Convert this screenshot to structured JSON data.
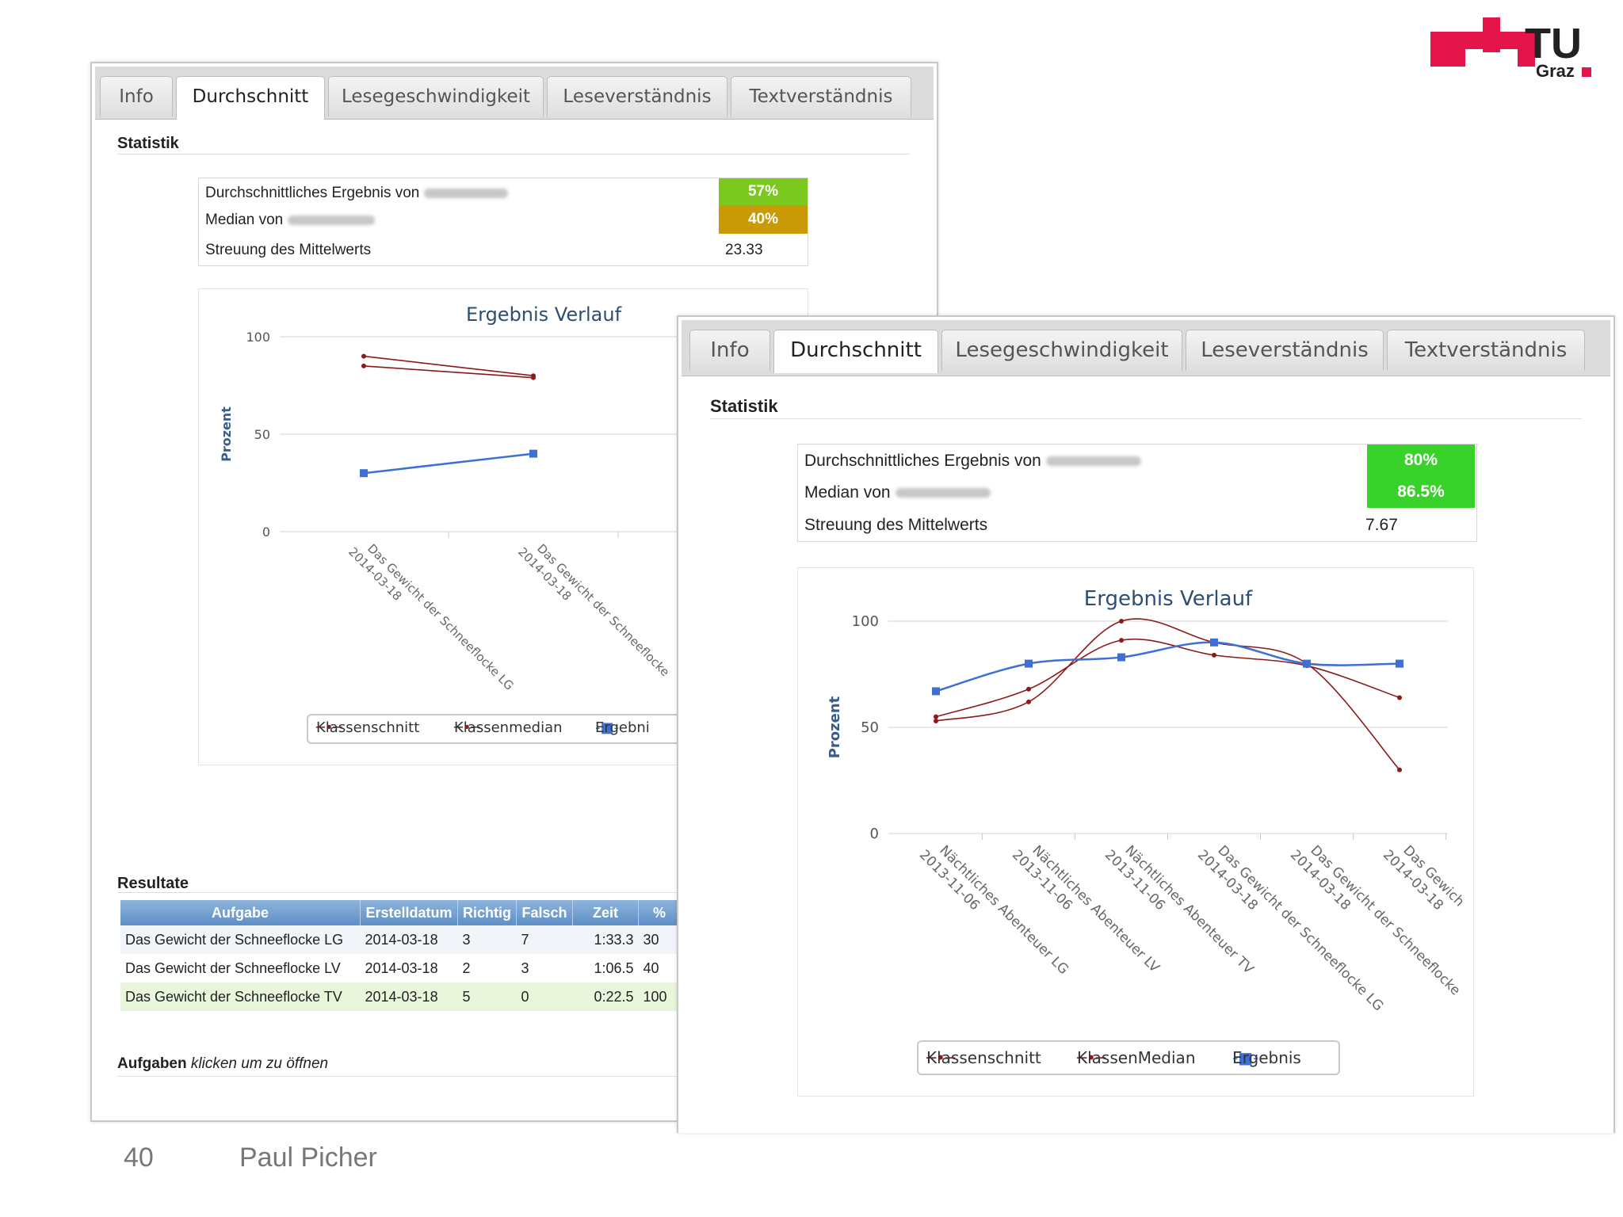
{
  "logo": {
    "text_main": "TU",
    "text_sub": "Graz",
    "color": "#e4154b"
  },
  "colors": {
    "green": "#7bc91f",
    "olive": "#c99a06",
    "bright_green": "#39d22a",
    "series_red": "#8b1a1a",
    "series_blue": "#3d6fd4"
  },
  "panel_a": {
    "tabs": [
      "Info",
      "Durchschnitt",
      "Lesegeschwindigkeit",
      "Leseverständnis",
      "Textverständnis"
    ],
    "active_tab": "Durchschnitt",
    "statistik_title": "Statistik",
    "stats": {
      "avg_label": "Durchschnittliches Ergebnis von",
      "avg_value": "57%",
      "median_label": "Median von",
      "median_value": "40%",
      "std_label": "Streuung des Mittelwerts",
      "std_value": "23.33"
    },
    "chart_title": "Ergebnis Verlauf",
    "y_axis_label": "Prozent",
    "y_ticks": [
      "100",
      "50",
      "0"
    ],
    "x_labels": [
      {
        "line1": "Das Gewicht der Schneeflocke LG",
        "line2": "2014-03-18"
      },
      {
        "line1": "Das Gewicht der Schneeflocke",
        "line2": "2014-03-18"
      }
    ],
    "legend": [
      "Klassenschnitt",
      "Klassenmedian",
      "Ergebni"
    ],
    "resultate_title": "Resultate",
    "table": {
      "headers": [
        "Aufgabe",
        "Erstelldatum",
        "Richtig",
        "Falsch",
        "Zeit",
        "%"
      ],
      "rows": [
        [
          "Das Gewicht der Schneeflocke LG",
          "2014-03-18",
          "3",
          "7",
          "1:33.3",
          "30"
        ],
        [
          "Das Gewicht der Schneeflocke LV",
          "2014-03-18",
          "2",
          "3",
          "1:06.5",
          "40"
        ],
        [
          "Das Gewicht der Schneeflocke TV",
          "2014-03-18",
          "5",
          "0",
          "0:22.5",
          "100"
        ]
      ]
    },
    "aufgaben_title": "Aufgaben",
    "aufgaben_hint": "klicken um zu öffnen"
  },
  "panel_b": {
    "tabs": [
      "Info",
      "Durchschnitt",
      "Lesegeschwindigkeit",
      "Leseverständnis",
      "Textverständnis"
    ],
    "active_tab": "Durchschnitt",
    "statistik_title": "Statistik",
    "stats": {
      "avg_label": "Durchschnittliches Ergebnis von",
      "avg_value": "80%",
      "median_label": "Median von",
      "median_value": "86.5%",
      "std_label": "Streuung des Mittelwerts",
      "std_value": "7.67"
    },
    "chart_title": "Ergebnis Verlauf",
    "y_axis_label": "Prozent",
    "y_ticks": [
      "100",
      "50",
      "0"
    ],
    "x_labels": [
      {
        "line1": "Nächtliches Abenteuer LG",
        "line2": "2013-11-06"
      },
      {
        "line1": "Nächtliches Abenteuer LV",
        "line2": "2013-11-06"
      },
      {
        "line1": "Nächtliches Abenteuer TV",
        "line2": "2013-11-06"
      },
      {
        "line1": "Das Gewicht der Schneeflocke LG",
        "line2": "2014-03-18"
      },
      {
        "line1": "Das Gewicht der Schneeflocke",
        "line2": "2014-03-18"
      },
      {
        "line1": "Das Gewich",
        "line2": "2014-03-18"
      }
    ],
    "legend": [
      "Klassenschnitt",
      "KlassenMedian",
      "Ergebnis"
    ]
  },
  "chart_data": [
    {
      "type": "line",
      "title": "Ergebnis Verlauf",
      "ylabel": "Prozent",
      "ylim": [
        0,
        100
      ],
      "categories": [
        "Das Gewicht der Schneeflocke LG 2014-03-18",
        "Das Gewicht der Schneeflocke 2014-03-18"
      ],
      "series": [
        {
          "name": "Klassenschnitt",
          "values": [
            85,
            79
          ]
        },
        {
          "name": "Klassenmedian",
          "values": [
            90,
            80
          ]
        },
        {
          "name": "Ergebni",
          "values": [
            30,
            40
          ]
        }
      ]
    },
    {
      "type": "line",
      "title": "Ergebnis Verlauf",
      "ylabel": "Prozent",
      "ylim": [
        0,
        100
      ],
      "categories": [
        "Nächtliches Abenteuer LG 2013-11-06",
        "Nächtliches Abenteuer LV 2013-11-06",
        "Nächtliches Abenteuer TV 2013-11-06",
        "Das Gewicht der Schneeflocke LG 2014-03-18",
        "Das Gewicht der Schneeflocke 2014-03-18",
        "Das Gewich 2014-03-18"
      ],
      "series": [
        {
          "name": "Klassenschnitt",
          "values": [
            55,
            68,
            91,
            84,
            79,
            64
          ]
        },
        {
          "name": "KlassenMedian",
          "values": [
            53,
            62,
            100,
            90,
            80,
            30
          ]
        },
        {
          "name": "Ergebnis",
          "values": [
            67,
            80,
            83,
            90,
            80,
            80
          ]
        }
      ]
    }
  ],
  "footer": {
    "page_number": "40",
    "author": "Paul Picher"
  }
}
